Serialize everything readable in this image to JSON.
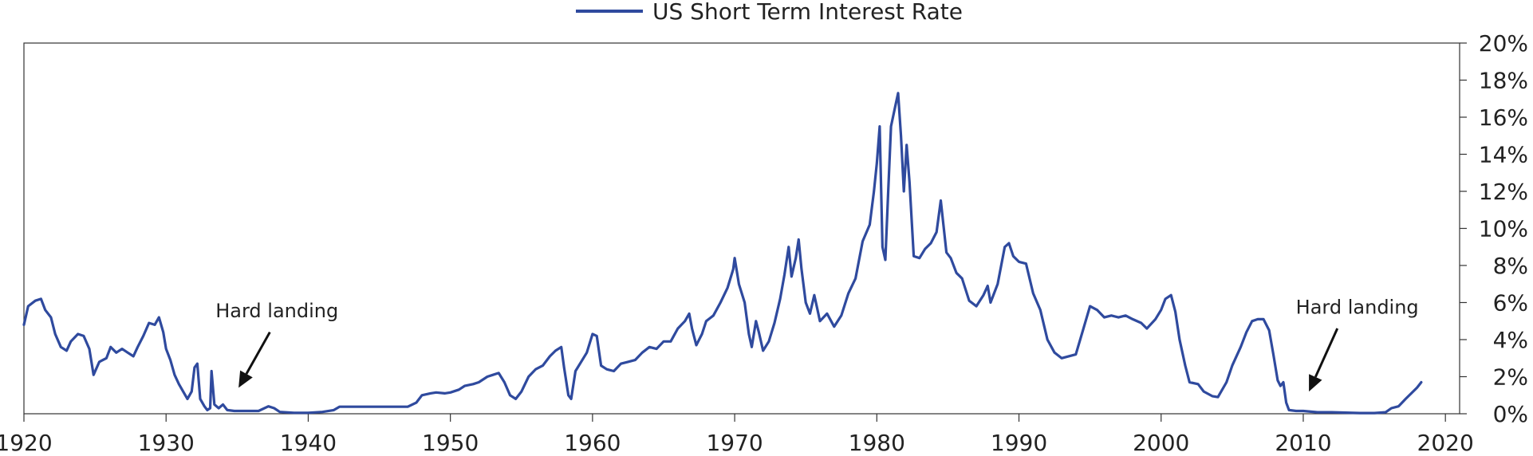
{
  "chart_data": {
    "type": "line",
    "title": "",
    "xlabel": "",
    "ylabel": "",
    "xlim": [
      1920,
      2021
    ],
    "ylim": [
      0,
      20
    ],
    "y_axis_side": "right",
    "y_tick_format": "percent",
    "x_ticks": [
      1920,
      1930,
      1940,
      1950,
      1960,
      1970,
      1980,
      1990,
      2000,
      2010,
      2020
    ],
    "y_ticks": [
      0,
      2,
      4,
      6,
      8,
      10,
      12,
      14,
      16,
      18,
      20
    ],
    "legend": {
      "position": "top-center"
    },
    "grid": false,
    "colors": {
      "line": "#2f4a9e",
      "axis": "#333333",
      "arrow": "#111111"
    },
    "series": [
      {
        "name": "US Short Term Interest Rate",
        "points": [
          [
            1920.0,
            4.8
          ],
          [
            1920.3,
            5.8
          ],
          [
            1920.8,
            6.1
          ],
          [
            1921.2,
            6.2
          ],
          [
            1921.5,
            5.6
          ],
          [
            1921.9,
            5.2
          ],
          [
            1922.2,
            4.3
          ],
          [
            1922.6,
            3.6
          ],
          [
            1923.0,
            3.4
          ],
          [
            1923.3,
            3.9
          ],
          [
            1923.8,
            4.3
          ],
          [
            1924.2,
            4.2
          ],
          [
            1924.6,
            3.5
          ],
          [
            1924.9,
            2.1
          ],
          [
            1925.3,
            2.8
          ],
          [
            1925.8,
            3.0
          ],
          [
            1926.1,
            3.6
          ],
          [
            1926.5,
            3.3
          ],
          [
            1926.9,
            3.5
          ],
          [
            1927.3,
            3.3
          ],
          [
            1927.7,
            3.1
          ],
          [
            1928.0,
            3.6
          ],
          [
            1928.4,
            4.2
          ],
          [
            1928.8,
            4.9
          ],
          [
            1929.2,
            4.8
          ],
          [
            1929.5,
            5.2
          ],
          [
            1929.8,
            4.4
          ],
          [
            1930.0,
            3.5
          ],
          [
            1930.3,
            2.9
          ],
          [
            1930.6,
            2.1
          ],
          [
            1930.9,
            1.6
          ],
          [
            1931.2,
            1.2
          ],
          [
            1931.5,
            0.8
          ],
          [
            1931.8,
            1.2
          ],
          [
            1932.0,
            2.5
          ],
          [
            1932.2,
            2.7
          ],
          [
            1932.4,
            0.8
          ],
          [
            1932.7,
            0.4
          ],
          [
            1932.9,
            0.2
          ],
          [
            1933.1,
            0.3
          ],
          [
            1933.2,
            2.3
          ],
          [
            1933.4,
            0.5
          ],
          [
            1933.7,
            0.3
          ],
          [
            1934.0,
            0.5
          ],
          [
            1934.3,
            0.2
          ],
          [
            1934.8,
            0.15
          ],
          [
            1935.5,
            0.15
          ],
          [
            1936.5,
            0.15
          ],
          [
            1937.2,
            0.4
          ],
          [
            1937.6,
            0.3
          ],
          [
            1938.0,
            0.1
          ],
          [
            1939.0,
            0.05
          ],
          [
            1940.0,
            0.05
          ],
          [
            1941.0,
            0.1
          ],
          [
            1941.8,
            0.2
          ],
          [
            1942.2,
            0.38
          ],
          [
            1943.0,
            0.38
          ],
          [
            1945.0,
            0.38
          ],
          [
            1947.0,
            0.38
          ],
          [
            1947.6,
            0.6
          ],
          [
            1948.0,
            1.0
          ],
          [
            1948.6,
            1.1
          ],
          [
            1949.0,
            1.15
          ],
          [
            1949.6,
            1.1
          ],
          [
            1950.0,
            1.15
          ],
          [
            1950.6,
            1.3
          ],
          [
            1951.0,
            1.5
          ],
          [
            1951.6,
            1.6
          ],
          [
            1952.0,
            1.7
          ],
          [
            1952.6,
            2.0
          ],
          [
            1953.0,
            2.1
          ],
          [
            1953.4,
            2.2
          ],
          [
            1953.8,
            1.7
          ],
          [
            1954.2,
            1.0
          ],
          [
            1954.6,
            0.8
          ],
          [
            1955.0,
            1.2
          ],
          [
            1955.5,
            2.0
          ],
          [
            1956.0,
            2.4
          ],
          [
            1956.5,
            2.6
          ],
          [
            1957.0,
            3.1
          ],
          [
            1957.4,
            3.4
          ],
          [
            1957.8,
            3.6
          ],
          [
            1958.0,
            2.5
          ],
          [
            1958.3,
            1.0
          ],
          [
            1958.5,
            0.8
          ],
          [
            1958.8,
            2.3
          ],
          [
            1959.2,
            2.8
          ],
          [
            1959.6,
            3.3
          ],
          [
            1960.0,
            4.3
          ],
          [
            1960.3,
            4.2
          ],
          [
            1960.6,
            2.6
          ],
          [
            1961.0,
            2.4
          ],
          [
            1961.5,
            2.3
          ],
          [
            1962.0,
            2.7
          ],
          [
            1962.5,
            2.8
          ],
          [
            1963.0,
            2.9
          ],
          [
            1963.5,
            3.3
          ],
          [
            1964.0,
            3.6
          ],
          [
            1964.5,
            3.5
          ],
          [
            1965.0,
            3.9
          ],
          [
            1965.5,
            3.9
          ],
          [
            1966.0,
            4.6
          ],
          [
            1966.5,
            5.0
          ],
          [
            1966.8,
            5.4
          ],
          [
            1967.0,
            4.6
          ],
          [
            1967.3,
            3.7
          ],
          [
            1967.7,
            4.3
          ],
          [
            1968.0,
            5.0
          ],
          [
            1968.5,
            5.3
          ],
          [
            1969.0,
            6.0
          ],
          [
            1969.5,
            6.8
          ],
          [
            1969.9,
            7.8
          ],
          [
            1970.0,
            8.4
          ],
          [
            1970.3,
            7.0
          ],
          [
            1970.7,
            6.0
          ],
          [
            1971.0,
            4.3
          ],
          [
            1971.2,
            3.6
          ],
          [
            1971.5,
            5.0
          ],
          [
            1971.7,
            4.4
          ],
          [
            1972.0,
            3.4
          ],
          [
            1972.4,
            3.9
          ],
          [
            1972.8,
            4.9
          ],
          [
            1973.2,
            6.2
          ],
          [
            1973.5,
            7.5
          ],
          [
            1973.8,
            9.0
          ],
          [
            1974.0,
            7.4
          ],
          [
            1974.3,
            8.4
          ],
          [
            1974.5,
            9.4
          ],
          [
            1974.7,
            7.8
          ],
          [
            1975.0,
            6.0
          ],
          [
            1975.3,
            5.4
          ],
          [
            1975.6,
            6.4
          ],
          [
            1975.8,
            5.7
          ],
          [
            1976.0,
            5.0
          ],
          [
            1976.5,
            5.4
          ],
          [
            1977.0,
            4.7
          ],
          [
            1977.5,
            5.3
          ],
          [
            1978.0,
            6.5
          ],
          [
            1978.5,
            7.3
          ],
          [
            1979.0,
            9.3
          ],
          [
            1979.5,
            10.2
          ],
          [
            1979.8,
            12.0
          ],
          [
            1980.0,
            13.5
          ],
          [
            1980.2,
            15.5
          ],
          [
            1980.4,
            9.0
          ],
          [
            1980.6,
            8.3
          ],
          [
            1980.8,
            12.0
          ],
          [
            1981.0,
            15.5
          ],
          [
            1981.3,
            16.6
          ],
          [
            1981.5,
            17.3
          ],
          [
            1981.7,
            15.0
          ],
          [
            1981.9,
            12.0
          ],
          [
            1982.1,
            14.5
          ],
          [
            1982.3,
            12.5
          ],
          [
            1982.6,
            8.5
          ],
          [
            1983.0,
            8.4
          ],
          [
            1983.4,
            8.9
          ],
          [
            1983.8,
            9.2
          ],
          [
            1984.2,
            9.8
          ],
          [
            1984.5,
            11.5
          ],
          [
            1984.9,
            8.7
          ],
          [
            1985.2,
            8.4
          ],
          [
            1985.6,
            7.6
          ],
          [
            1986.0,
            7.3
          ],
          [
            1986.5,
            6.1
          ],
          [
            1987.0,
            5.8
          ],
          [
            1987.5,
            6.4
          ],
          [
            1987.8,
            6.9
          ],
          [
            1988.0,
            6.0
          ],
          [
            1988.5,
            7.0
          ],
          [
            1989.0,
            9.0
          ],
          [
            1989.3,
            9.2
          ],
          [
            1989.6,
            8.5
          ],
          [
            1990.0,
            8.2
          ],
          [
            1990.5,
            8.1
          ],
          [
            1991.0,
            6.5
          ],
          [
            1991.5,
            5.6
          ],
          [
            1992.0,
            4.0
          ],
          [
            1992.5,
            3.3
          ],
          [
            1993.0,
            3.0
          ],
          [
            1993.5,
            3.1
          ],
          [
            1994.0,
            3.2
          ],
          [
            1994.5,
            4.5
          ],
          [
            1995.0,
            5.8
          ],
          [
            1995.5,
            5.6
          ],
          [
            1996.0,
            5.2
          ],
          [
            1996.5,
            5.3
          ],
          [
            1997.0,
            5.2
          ],
          [
            1997.5,
            5.3
          ],
          [
            1998.0,
            5.1
          ],
          [
            1998.6,
            4.9
          ],
          [
            1999.0,
            4.6
          ],
          [
            1999.6,
            5.1
          ],
          [
            2000.0,
            5.6
          ],
          [
            2000.3,
            6.2
          ],
          [
            2000.7,
            6.4
          ],
          [
            2001.0,
            5.5
          ],
          [
            2001.3,
            4.0
          ],
          [
            2001.7,
            2.6
          ],
          [
            2002.0,
            1.7
          ],
          [
            2002.6,
            1.6
          ],
          [
            2003.0,
            1.2
          ],
          [
            2003.6,
            0.95
          ],
          [
            2004.0,
            0.9
          ],
          [
            2004.6,
            1.7
          ],
          [
            2005.0,
            2.6
          ],
          [
            2005.6,
            3.6
          ],
          [
            2006.0,
            4.4
          ],
          [
            2006.4,
            5.0
          ],
          [
            2006.8,
            5.1
          ],
          [
            2007.2,
            5.1
          ],
          [
            2007.6,
            4.5
          ],
          [
            2007.9,
            3.2
          ],
          [
            2008.2,
            1.8
          ],
          [
            2008.4,
            1.5
          ],
          [
            2008.6,
            1.7
          ],
          [
            2008.8,
            0.6
          ],
          [
            2009.0,
            0.2
          ],
          [
            2009.5,
            0.15
          ],
          [
            2010.0,
            0.15
          ],
          [
            2011.0,
            0.08
          ],
          [
            2012.0,
            0.08
          ],
          [
            2013.0,
            0.06
          ],
          [
            2014.0,
            0.04
          ],
          [
            2015.0,
            0.04
          ],
          [
            2015.8,
            0.08
          ],
          [
            2016.2,
            0.3
          ],
          [
            2016.7,
            0.4
          ],
          [
            2017.2,
            0.8
          ],
          [
            2017.6,
            1.1
          ],
          [
            2018.0,
            1.4
          ],
          [
            2018.3,
            1.7
          ]
        ]
      }
    ],
    "annotations": [
      {
        "text": "Hard landing",
        "label_at": [
          1937.8,
          5.2
        ],
        "arrow_from": [
          1937.3,
          4.4
        ],
        "arrow_to": [
          1935.1,
          1.4
        ]
      },
      {
        "text": "Hard landing",
        "label_at": [
          2013.8,
          5.4
        ],
        "arrow_from": [
          2012.4,
          4.6
        ],
        "arrow_to": [
          2010.4,
          1.2
        ]
      }
    ]
  }
}
